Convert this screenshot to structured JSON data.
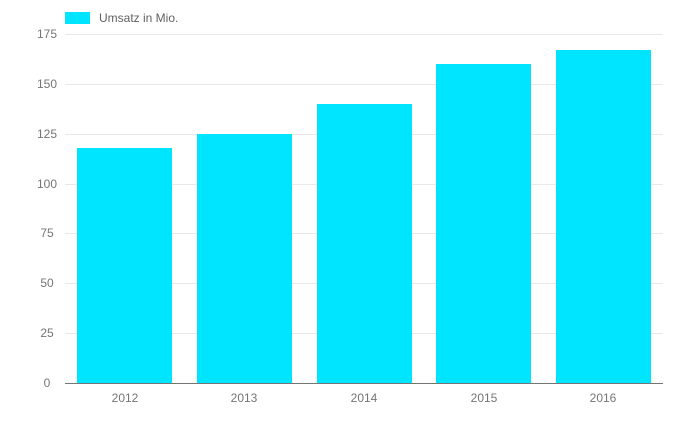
{
  "chart_data": {
    "type": "bar",
    "title": "",
    "categories": [
      "2012",
      "2013",
      "2014",
      "2015",
      "2016"
    ],
    "series": [
      {
        "name": "Umsatz in Mio.",
        "values": [
          118,
          125,
          140,
          160,
          167
        ]
      }
    ],
    "ylim": [
      0,
      175
    ],
    "yticks": [
      0,
      25,
      50,
      75,
      100,
      125,
      150,
      175
    ],
    "grid": true,
    "legend_position": "top-left",
    "colors": {
      "bar": "#00e5ff",
      "gridline": "#e8e8e8",
      "baseline": "#757575",
      "axis_label": "#757575",
      "legend_text": "#616161",
      "background": "#ffffff"
    }
  }
}
